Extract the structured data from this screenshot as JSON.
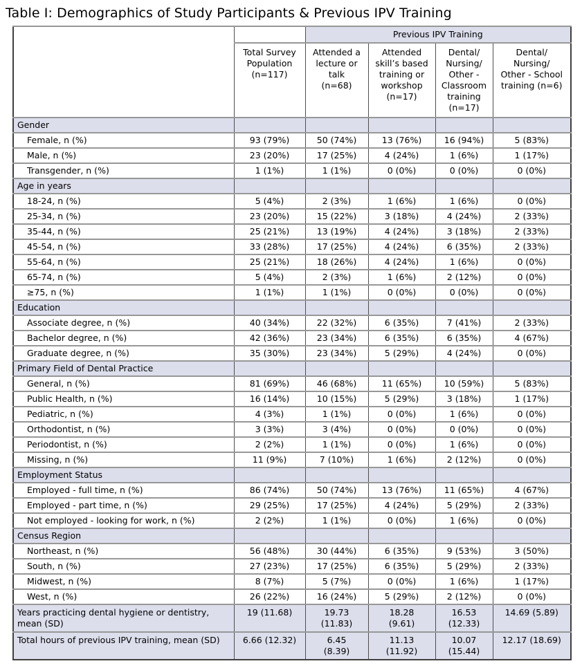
{
  "title": "Table I: Demographics of Study Participants & Previous IPV Training",
  "colors": {
    "section_fill": "#dcdeec",
    "outer_border": "#3f3f3f",
    "row_border": "#979797",
    "column_border": "#4d4d4d",
    "background": "#ffffff",
    "text": "#000000"
  },
  "table": {
    "col_group_header": "Previous IPV Training",
    "columns": [
      "Total Survey\nPopulation\n(n=117)",
      "Attended a\nlecture or\ntalk\n(n=68)",
      "Attended\nskill’s based\ntraining or\nworkshop\n(n=17)",
      "Dental/\nNursing/\nOther -\nClassroom\ntraining\n(n=17)",
      "Dental/\nNursing/\nOther - School\ntraining (n=6)"
    ],
    "sections": [
      {
        "header": "Gender",
        "rows": [
          {
            "label": "Female, n (%)",
            "values": [
              "93 (79%)",
              "50 (74%)",
              "13 (76%)",
              "16 (94%)",
              "5 (83%)"
            ]
          },
          {
            "label": "Male, n (%)",
            "values": [
              "23 (20%)",
              "17 (25%)",
              "4 (24%)",
              "1 (6%)",
              "1 (17%)"
            ]
          },
          {
            "label": "Transgender, n (%)",
            "values": [
              "1 (1%)",
              "1 (1%)",
              "0 (0%)",
              "0 (0%)",
              "0 (0%)"
            ]
          }
        ]
      },
      {
        "header": "Age in years",
        "rows": [
          {
            "label": "18-24, n (%)",
            "values": [
              "5 (4%)",
              "2 (3%)",
              "1 (6%)",
              "1 (6%)",
              "0 (0%)"
            ]
          },
          {
            "label": "25-34, n (%)",
            "values": [
              "23 (20%)",
              "15 (22%)",
              "3 (18%)",
              "4 (24%)",
              "2 (33%)"
            ]
          },
          {
            "label": "35-44, n (%)",
            "values": [
              "25 (21%)",
              "13 (19%)",
              "4 (24%)",
              "3 (18%)",
              "2 (33%)"
            ]
          },
          {
            "label": "45-54, n (%)",
            "values": [
              "33 (28%)",
              "17 (25%)",
              "4 (24%)",
              "6 (35%)",
              "2 (33%)"
            ]
          },
          {
            "label": "55-64, n (%)",
            "values": [
              "25 (21%)",
              "18 (26%)",
              "4 (24%)",
              "1 (6%)",
              "0 (0%)"
            ]
          },
          {
            "label": "65-74, n (%)",
            "values": [
              "5 (4%)",
              "2 (3%)",
              "1 (6%)",
              "2 (12%)",
              "0 (0%)"
            ]
          },
          {
            "label": "≥75, n (%)",
            "values": [
              "1 (1%)",
              "1 (1%)",
              "0 (0%)",
              "0 (0%)",
              "0 (0%)"
            ]
          }
        ]
      },
      {
        "header": "Education",
        "rows": [
          {
            "label": "Associate degree, n (%)",
            "values": [
              "40 (34%)",
              "22 (32%)",
              "6 (35%)",
              "7 (41%)",
              "2 (33%)"
            ]
          },
          {
            "label": "Bachelor degree, n (%)",
            "values": [
              "42 (36%)",
              "23 (34%)",
              "6 (35%)",
              "6 (35%)",
              "4 (67%)"
            ]
          },
          {
            "label": "Graduate degree, n (%)",
            "values": [
              "35 (30%)",
              "23 (34%)",
              "5 (29%)",
              "4 (24%)",
              "0 (0%)"
            ]
          }
        ]
      },
      {
        "header": "Primary Field of Dental Practice",
        "rows": [
          {
            "label": "General, n (%)",
            "values": [
              "81 (69%)",
              "46 (68%)",
              "11 (65%)",
              "10 (59%)",
              "5 (83%)"
            ]
          },
          {
            "label": "Public Health, n (%)",
            "values": [
              "16 (14%)",
              "10 (15%)",
              "5 (29%)",
              "3 (18%)",
              "1 (17%)"
            ]
          },
          {
            "label": "Pediatric, n (%)",
            "values": [
              "4 (3%)",
              "1 (1%)",
              "0 (0%)",
              "1 (6%)",
              "0 (0%)"
            ]
          },
          {
            "label": "Orthodontist, n (%)",
            "values": [
              "3 (3%)",
              "3 (4%)",
              "0 (0%)",
              "0 (0%)",
              "0 (0%)"
            ]
          },
          {
            "label": "Periodontist, n (%)",
            "values": [
              "2 (2%)",
              "1 (1%)",
              "0 (0%)",
              "1 (6%)",
              "0 (0%)"
            ]
          },
          {
            "label": "Missing, n (%)",
            "values": [
              "11 (9%)",
              "7 (10%)",
              "1 (6%)",
              "2 (12%)",
              "0 (0%)"
            ]
          }
        ]
      },
      {
        "header": "Employment Status",
        "rows": [
          {
            "label": "Employed - full time, n (%)",
            "values": [
              "86 (74%)",
              "50 (74%)",
              "13 (76%)",
              "11 (65%)",
              "4 (67%)"
            ]
          },
          {
            "label": "Employed - part time, n (%)",
            "values": [
              "29 (25%)",
              "17 (25%)",
              "4 (24%)",
              "5 (29%)",
              "2 (33%)"
            ]
          },
          {
            "label": "Not employed - looking for work, n (%)",
            "values": [
              "2 (2%)",
              "1 (1%)",
              "0 (0%)",
              "1 (6%)",
              "0 (0%)"
            ]
          }
        ]
      },
      {
        "header": "Census Region",
        "rows": [
          {
            "label": "Northeast, n (%)",
            "values": [
              "56 (48%)",
              "30 (44%)",
              "6 (35%)",
              "9 (53%)",
              "3 (50%)"
            ]
          },
          {
            "label": "South, n (%)",
            "values": [
              "27 (23%)",
              "17 (25%)",
              "6 (35%)",
              "5 (29%)",
              "2 (33%)"
            ]
          },
          {
            "label": "Midwest, n (%)",
            "values": [
              "8 (7%)",
              "5 (7%)",
              "0 (0%)",
              "1 (6%)",
              "1 (17%)"
            ]
          },
          {
            "label": "West, n (%)",
            "values": [
              "26 (22%)",
              "16 (24%)",
              "5 (29%)",
              "2 (12%)",
              "0 (0%)"
            ]
          }
        ]
      }
    ],
    "summary_rows": [
      {
        "label": "Years practicing dental hygiene or dentistry, mean (SD)",
        "values": [
          "19 (11.68)",
          "19.73\n(11.83)",
          "18.28\n(9.61)",
          "16.53\n(12.33)",
          "14.69 (5.89)"
        ]
      },
      {
        "label": "Total hours of previous IPV training, mean (SD)",
        "values": [
          "6.66 (12.32)",
          "6.45\n(8.39)",
          "11.13\n(11.92)",
          "10.07\n(15.44)",
          "12.17 (18.69)"
        ]
      }
    ]
  }
}
